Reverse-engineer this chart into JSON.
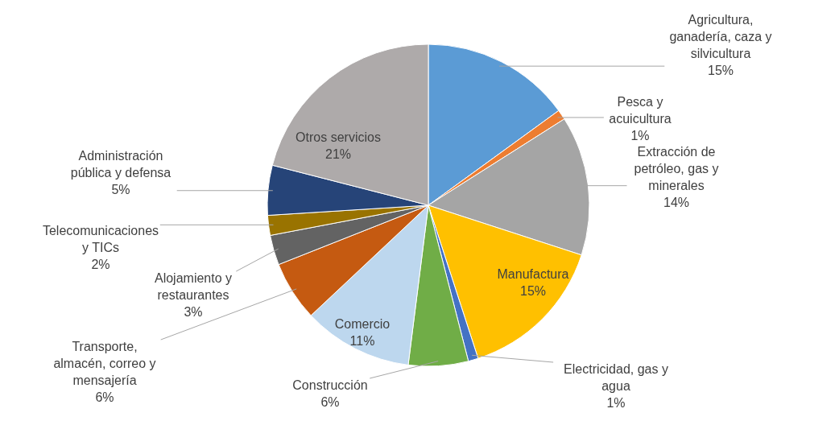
{
  "chart_data": {
    "type": "pie",
    "categories": [
      "Agricultura, ganadería, caza y silvicultura",
      "Pesca y acuicultura",
      "Extracción de petróleo, gas y minerales",
      "Manufactura",
      "Electricidad, gas y agua",
      "Construcción",
      "Comercio",
      "Transporte, almacén, correo y mensajería",
      "Alojamiento y restaurantes",
      "Telecomunicaciones y TICs",
      "Administración pública y defensa",
      "Otros servicios"
    ],
    "values": [
      15,
      1,
      14,
      15,
      1,
      6,
      11,
      6,
      3,
      2,
      5,
      21
    ],
    "value_labels": [
      "15%",
      "1%",
      "14%",
      "15%",
      "1%",
      "6%",
      "11%",
      "6%",
      "3%",
      "2%",
      "5%",
      "21%"
    ],
    "colors": [
      "#5b9bd5",
      "#ed7d31",
      "#a5a5a5",
      "#ffc000",
      "#4472c4",
      "#70ad47",
      "#bdd7ee",
      "#c55a11",
      "#636363",
      "#997300",
      "#264478",
      "#aeaaaa"
    ]
  }
}
